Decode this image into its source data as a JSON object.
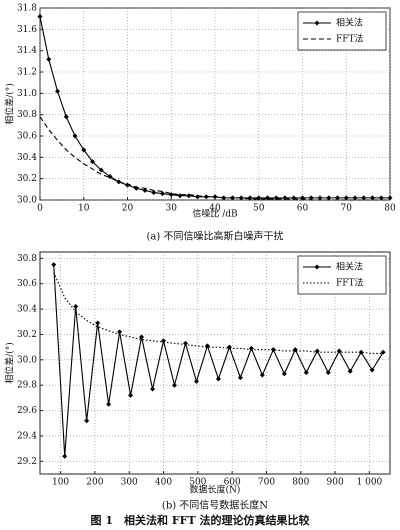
{
  "chart_data": [
    {
      "type": "line",
      "xlabel": "信噪比 /dB",
      "ylabel": "相位差/(°)",
      "caption": "(a) 不同信噪比高斯白噪声干扰",
      "x": [
        0,
        2,
        4,
        6,
        8,
        10,
        12,
        14,
        16,
        18,
        20,
        22,
        24,
        26,
        28,
        30,
        32,
        34,
        36,
        38,
        40,
        42,
        44,
        46,
        48,
        50,
        52,
        54,
        56,
        58,
        60,
        62,
        64,
        66,
        68,
        70,
        72,
        74,
        76,
        78,
        80
      ],
      "series": [
        {
          "name": "相关法",
          "color": "#000000",
          "line_style": "solid",
          "marker": "diamond",
          "values": [
            31.72,
            31.32,
            31.02,
            30.78,
            30.6,
            30.47,
            30.36,
            30.28,
            30.22,
            30.17,
            30.14,
            30.11,
            30.09,
            30.07,
            30.06,
            30.05,
            30.04,
            30.04,
            30.03,
            30.03,
            30.03,
            30.02,
            30.02,
            30.02,
            30.02,
            30.02,
            30.02,
            30.02,
            30.02,
            30.02,
            30.02,
            30.02,
            30.02,
            30.02,
            30.02,
            30.02,
            30.02,
            30.02,
            30.02,
            30.02,
            30.02
          ]
        },
        {
          "name": "FFT法",
          "color": "#000000",
          "line_style": "dashed",
          "marker": "none",
          "values": [
            30.78,
            30.66,
            30.56,
            30.47,
            30.4,
            30.34,
            30.29,
            30.24,
            30.21,
            30.17,
            30.15,
            30.12,
            30.11,
            30.09,
            30.08,
            30.06,
            30.05,
            30.05,
            30.04,
            30.03,
            30.03,
            30.02,
            30.02,
            30.02,
            30.01,
            30.01,
            30.01,
            30.01,
            30.01,
            30.01,
            30.01,
            30.0,
            30.0,
            30.0,
            30.0,
            30.0,
            30.0,
            30.0,
            30.0,
            30.0,
            30.0
          ]
        }
      ],
      "xlim": [
        0,
        80
      ],
      "xticks": [
        0,
        10,
        20,
        30,
        40,
        50,
        60,
        70,
        80
      ],
      "ylim": [
        30,
        31.8
      ],
      "yticks": [
        {
          "value": 30,
          "label": "30.0"
        },
        30.2,
        30.4,
        30.6,
        30.8,
        {
          "value": 31,
          "label": "31.0"
        },
        31.2,
        31.4,
        31.6,
        31.8
      ],
      "grid": true,
      "legend": "upper right"
    },
    {
      "type": "line",
      "xlabel": "数据长度(N)",
      "ylabel": "相位差/(°)",
      "caption": "(b) 不同信号数据长度N",
      "x": [
        80,
        112,
        144,
        176,
        208,
        240,
        272,
        304,
        336,
        368,
        400,
        432,
        464,
        496,
        528,
        560,
        592,
        624,
        656,
        688,
        720,
        752,
        784,
        816,
        848,
        880,
        912,
        944,
        976,
        1008,
        1040
      ],
      "series": [
        {
          "name": "相关法",
          "color": "#000000",
          "line_style": "solid",
          "marker": "diamond",
          "values": [
            30.75,
            29.24,
            30.42,
            29.52,
            30.29,
            29.65,
            30.22,
            29.72,
            30.18,
            29.77,
            30.15,
            29.8,
            30.13,
            29.83,
            30.11,
            29.85,
            30.1,
            29.86,
            30.09,
            29.88,
            30.08,
            29.89,
            30.08,
            29.9,
            30.07,
            29.9,
            30.07,
            29.91,
            30.06,
            29.92,
            30.06
          ]
        },
        {
          "name": "FFT法",
          "color": "#000000",
          "line_style": "dotted",
          "marker": "none",
          "values": [
            30.69,
            30.49,
            30.38,
            30.31,
            30.26,
            30.23,
            30.2,
            30.18,
            30.16,
            30.15,
            30.14,
            30.13,
            30.12,
            30.11,
            30.1,
            30.1,
            30.09,
            30.09,
            30.08,
            30.08,
            30.08,
            30.07,
            30.07,
            30.07,
            30.06,
            30.06,
            30.06,
            30.06,
            30.06,
            30.05,
            30.05
          ]
        }
      ],
      "xlim": [
        40,
        1060
      ],
      "xticks": [
        100,
        200,
        300,
        400,
        500,
        600,
        700,
        800,
        900,
        {
          "value": 1000,
          "label": "1 000"
        }
      ],
      "ylim": [
        29.1,
        30.85
      ],
      "yticks": [
        29.2,
        29.4,
        29.6,
        29.8,
        {
          "value": 30,
          "label": "30.0"
        },
        30.2,
        30.4,
        30.6,
        30.8
      ],
      "grid": true,
      "legend": "upper right"
    }
  ],
  "figure_caption": "图 1　相关法和 FFT 法的理论仿真结果比较"
}
